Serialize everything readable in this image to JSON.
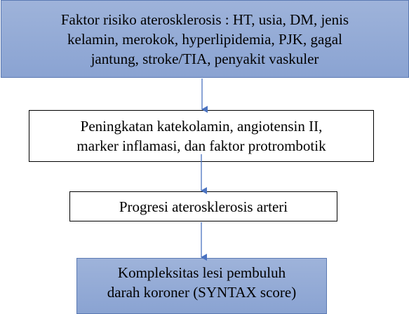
{
  "diagram": {
    "nodes": [
      {
        "id": "risk-factors",
        "lines": [
          "Faktor risiko aterosklerosis : HT, usia, DM, jenis",
          "kelamin, merokok, hyperlipidemia, PJK, gagal",
          "jantung, stroke/TIA, penyakit vaskuler"
        ]
      },
      {
        "id": "increase",
        "lines": [
          "Peningkatan katekolamin, angiotensin II,",
          "marker inflamasi, dan faktor protrombotik"
        ]
      },
      {
        "id": "progression",
        "lines": [
          "Progresi aterosklerosis arteri"
        ]
      },
      {
        "id": "complexity",
        "lines": [
          "Kompleksitas lesi pembuluh",
          "darah koroner (SYNTAX score)"
        ]
      }
    ],
    "edges": [
      {
        "from": "risk-factors",
        "to": "increase"
      },
      {
        "from": "increase",
        "to": "progression"
      },
      {
        "from": "progression",
        "to": "complexity"
      }
    ],
    "colors": {
      "blue_fill": "#8fa8d5",
      "blue_border": "#5b7ab3",
      "arrow": "#4a72c0",
      "white_border": "#000000"
    }
  }
}
